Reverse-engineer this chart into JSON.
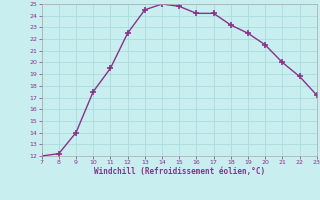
{
  "x": [
    7,
    8,
    9,
    10,
    11,
    12,
    13,
    14,
    15,
    16,
    17,
    18,
    19,
    20,
    21,
    22,
    23
  ],
  "y": [
    12,
    12.2,
    14,
    17.5,
    19.5,
    22.5,
    24.5,
    25,
    24.8,
    24.2,
    24.2,
    23.2,
    22.5,
    21.5,
    20,
    18.8,
    17.2
  ],
  "xlabel": "Windchill (Refroidissement éolien,°C)",
  "xlim": [
    7,
    23
  ],
  "ylim": [
    12,
    25
  ],
  "yticks": [
    12,
    13,
    14,
    15,
    16,
    17,
    18,
    19,
    20,
    21,
    22,
    23,
    24,
    25
  ],
  "xticks": [
    7,
    8,
    9,
    10,
    11,
    12,
    13,
    14,
    15,
    16,
    17,
    18,
    19,
    20,
    21,
    22,
    23
  ],
  "line_color": "#883388",
  "marker": "+",
  "bg_color": "#c8eef0",
  "grid_color": "#aadddd",
  "xlabel_color": "#883388",
  "tick_color": "#883388",
  "spine_color": "#aaaaaa"
}
